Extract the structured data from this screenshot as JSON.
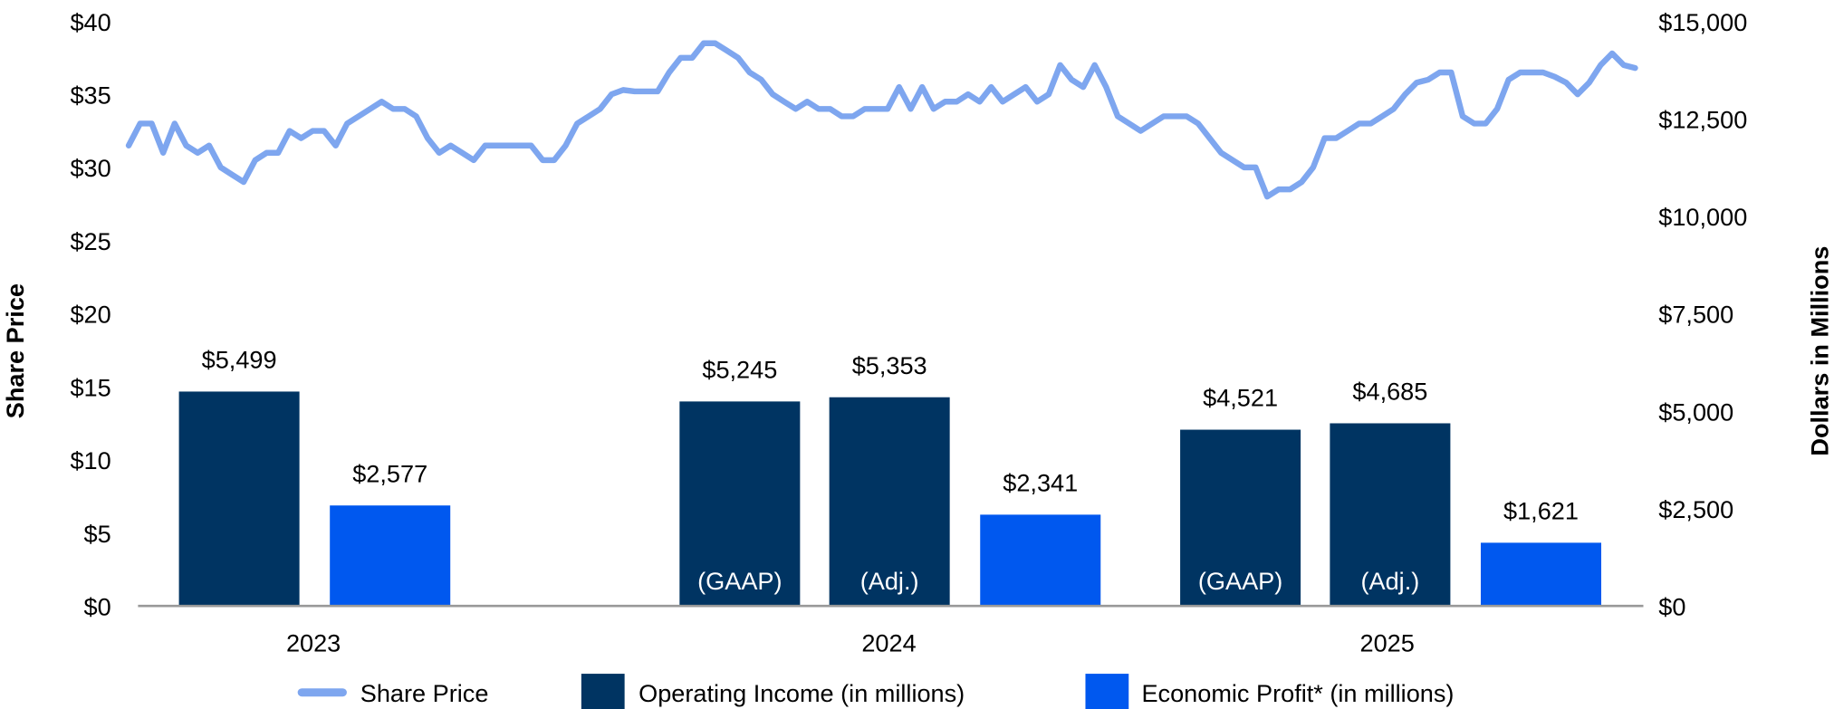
{
  "chart_data": {
    "type": "bar+line",
    "categories": [
      "2023",
      "2024",
      "2025"
    ],
    "left_axis": {
      "title": "Share Price",
      "ticks": [
        "$0",
        "$5",
        "$10",
        "$15",
        "$20",
        "$25",
        "$30",
        "$35",
        "$40"
      ],
      "range": [
        0,
        40
      ]
    },
    "right_axis": {
      "title": "Dollars in Millions",
      "ticks": [
        "$0",
        "$2,500",
        "$5,000",
        "$7,500",
        "$10,000",
        "$12,500",
        "$15,000"
      ],
      "range": [
        0,
        15000
      ]
    },
    "bars": [
      {
        "category": "2023",
        "series": "Operating Income (in millions)",
        "value": 5499,
        "label": "$5,499",
        "sublabel": ""
      },
      {
        "category": "2023",
        "series": "Economic Profit* (in millions)",
        "value": 2577,
        "label": "$2,577",
        "sublabel": ""
      },
      {
        "category": "2024",
        "series": "Operating Income (in millions)",
        "value": 5245,
        "label": "$5,245",
        "sublabel": "(GAAP)"
      },
      {
        "category": "2024",
        "series": "Operating Income (in millions)",
        "value": 5353,
        "label": "$5,353",
        "sublabel": "(Adj.)"
      },
      {
        "category": "2024",
        "series": "Economic Profit* (in millions)",
        "value": 2341,
        "label": "$2,341",
        "sublabel": ""
      },
      {
        "category": "2025",
        "series": "Operating Income (in millions)",
        "value": 4521,
        "label": "$4,521",
        "sublabel": "(GAAP)"
      },
      {
        "category": "2025",
        "series": "Operating Income (in millions)",
        "value": 4685,
        "label": "$4,685",
        "sublabel": "(Adj.)"
      },
      {
        "category": "2025",
        "series": "Economic Profit* (in millions)",
        "value": 1621,
        "label": "$1,621",
        "sublabel": ""
      }
    ],
    "share_price": [
      31.5,
      33,
      33,
      31,
      33,
      31.5,
      31,
      31.5,
      30,
      29.5,
      29,
      30.5,
      31,
      31,
      32.5,
      32,
      32.5,
      32.5,
      31.5,
      33,
      33.5,
      34,
      34.5,
      34,
      34,
      33.5,
      32,
      31,
      31.5,
      31,
      30.5,
      31.5,
      31.5,
      31.5,
      31.5,
      31.5,
      30.5,
      30.5,
      31.5,
      33,
      33.5,
      34,
      35,
      35.3,
      35.2,
      35.2,
      35.2,
      36.5,
      37.5,
      37.5,
      38.5,
      38.5,
      38,
      37.5,
      36.5,
      36,
      35,
      34.5,
      34,
      34.5,
      34,
      34,
      33.5,
      33.5,
      34,
      34,
      34,
      35.5,
      34,
      35.5,
      34,
      34.5,
      34.5,
      35,
      34.5,
      35.5,
      34.5,
      35,
      35.5,
      34.5,
      35,
      37,
      36,
      35.5,
      37,
      35.5,
      33.5,
      33,
      32.5,
      33,
      33.5,
      33.5,
      33.5,
      33,
      32,
      31,
      30.5,
      30,
      30,
      28,
      28.5,
      28.5,
      29,
      30,
      32,
      32,
      32.5,
      33,
      33,
      33.5,
      34,
      35,
      35.8,
      36,
      36.5,
      36.5,
      33.5,
      33,
      33,
      34,
      36,
      36.5,
      36.5,
      36.5,
      36.2,
      35.8,
      35,
      35.8,
      37,
      37.8,
      37,
      36.8
    ],
    "legend": [
      {
        "name": "Share Price",
        "color": "#7ea6ef",
        "kind": "line"
      },
      {
        "name": "Operating Income (in millions)",
        "color": "#003462",
        "kind": "bar"
      },
      {
        "name": "Economic Profit* (in millions)",
        "color": "#0058ef",
        "kind": "bar"
      }
    ],
    "legend_position": "bottom",
    "grid": false
  }
}
